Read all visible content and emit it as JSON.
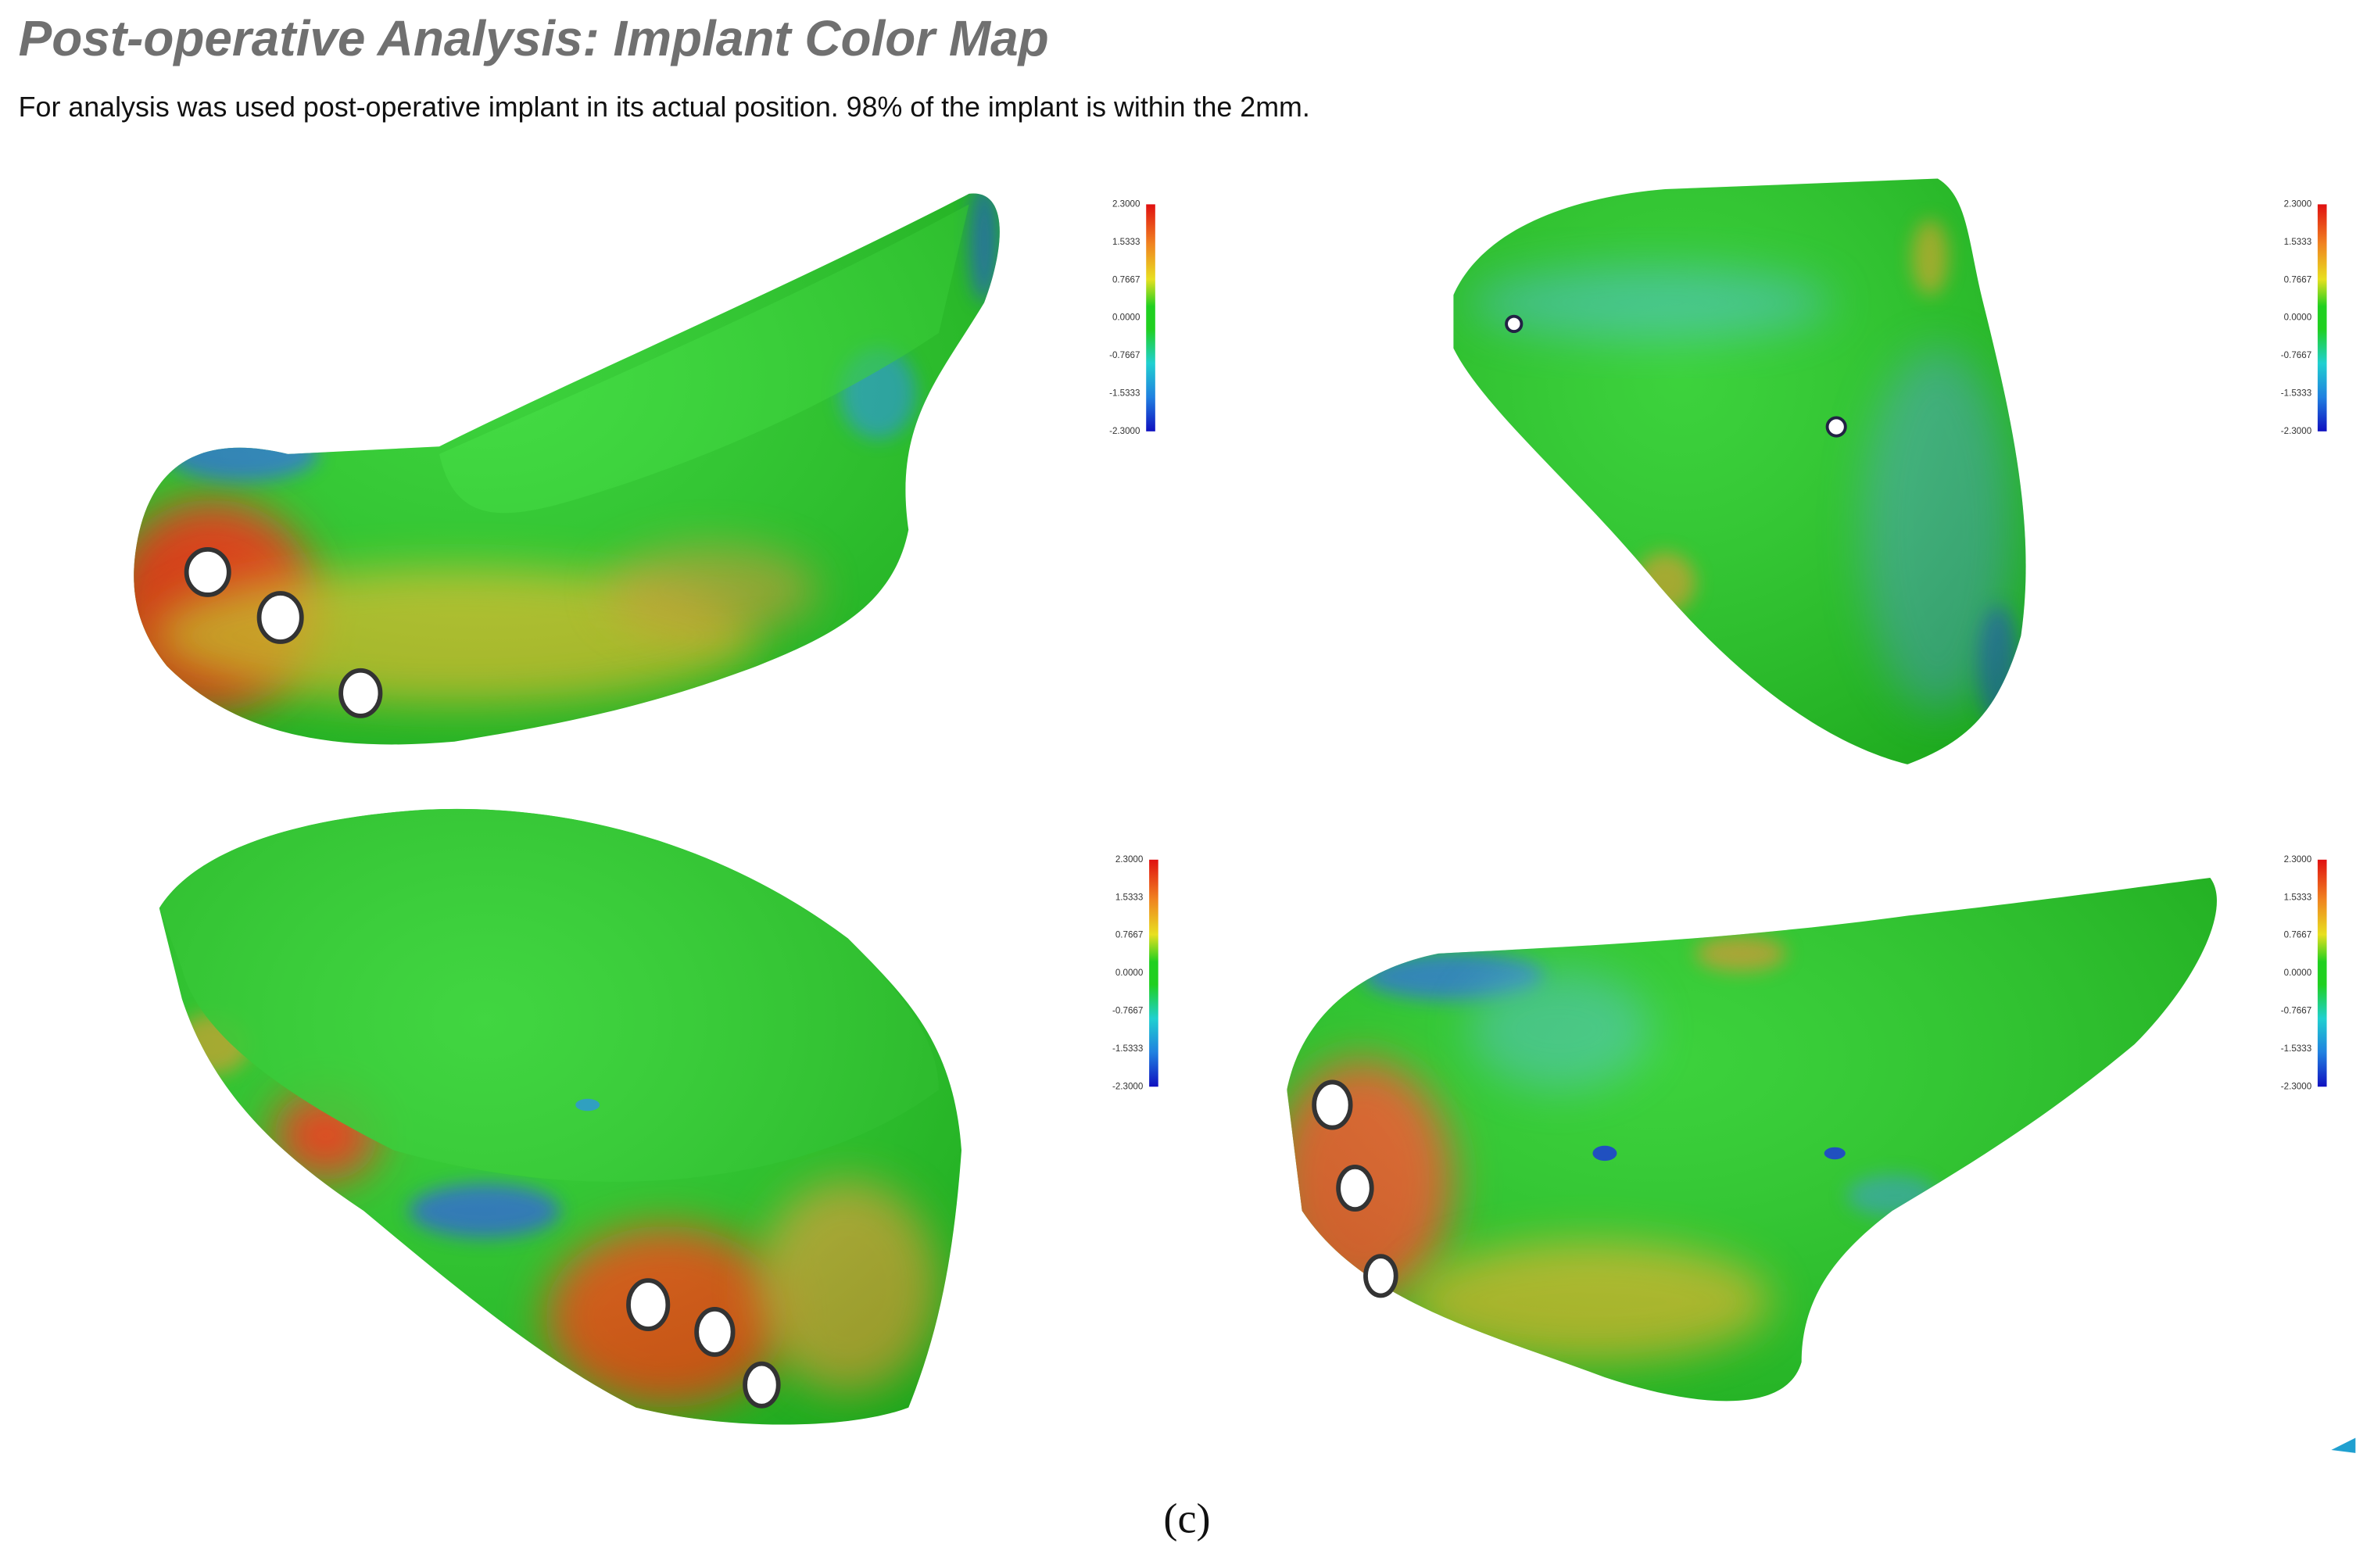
{
  "header": {
    "title": "Post-operative Analysis: Implant Color Map",
    "subtitle": "For analysis was used post-operative implant in its actual position. 98% of the implant is within the 2mm."
  },
  "panels": [
    {
      "scale_labels": [
        "2.3000",
        "1.5333",
        "0.7667",
        "0.0000",
        "-0.7667",
        "-1.5333",
        "-2.3000"
      ]
    },
    {
      "scale_labels": [
        "2.3000",
        "1.5333",
        "0.7667",
        "0.0000",
        "-0.7667",
        "-1.5333",
        "-2.3000"
      ]
    },
    {
      "scale_labels": [
        "2.3000",
        "1.5333",
        "0.7667",
        "0.0000",
        "-0.7667",
        "-1.5333",
        "-2.3000"
      ]
    },
    {
      "scale_labels": [
        "2.3000",
        "1.5333",
        "0.7667",
        "0.0000",
        "-0.7667",
        "-1.5333",
        "-2.3000"
      ]
    }
  ],
  "caption": "(c)"
}
